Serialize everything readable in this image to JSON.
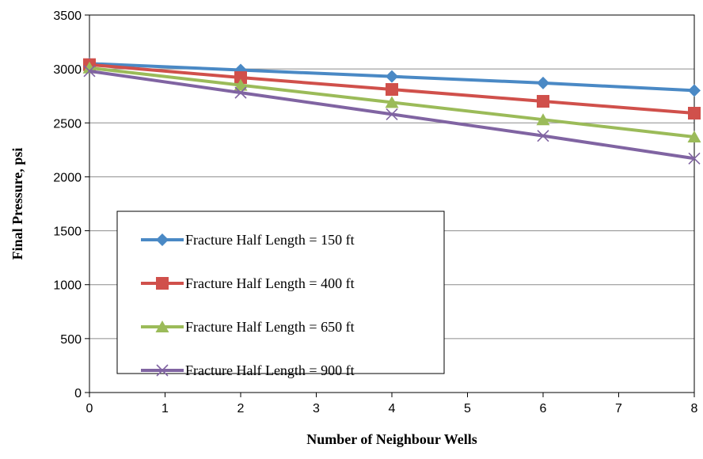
{
  "chart_data": {
    "type": "line",
    "title": "",
    "xlabel": "Number of Neighbour Wells",
    "ylabel": "Final Pressure, psi",
    "xlim": [
      0,
      8
    ],
    "ylim": [
      0,
      3500
    ],
    "xticks": [
      0,
      1,
      2,
      3,
      4,
      5,
      6,
      7,
      8
    ],
    "yticks": [
      0,
      500,
      1000,
      1500,
      2000,
      2500,
      3000,
      3500
    ],
    "grid": "horizontal",
    "legend_position": "lower-left",
    "x": [
      0,
      2,
      4,
      6,
      8
    ],
    "series": [
      {
        "name": "Fracture Half Length = 150 ft",
        "values": [
          3050,
          2990,
          2930,
          2870,
          2800
        ],
        "color": "#4a89c5",
        "marker": "diamond"
      },
      {
        "name": "Fracture Half Length = 400 ft",
        "values": [
          3040,
          2920,
          2810,
          2700,
          2590
        ],
        "color": "#d0504b",
        "marker": "square"
      },
      {
        "name": "Fracture Half Length = 650 ft",
        "values": [
          3010,
          2850,
          2690,
          2530,
          2370
        ],
        "color": "#9bbb59",
        "marker": "triangle"
      },
      {
        "name": "Fracture Half Length = 900 ft",
        "values": [
          2980,
          2780,
          2580,
          2380,
          2170
        ],
        "color": "#8064a2",
        "marker": "x"
      }
    ]
  }
}
